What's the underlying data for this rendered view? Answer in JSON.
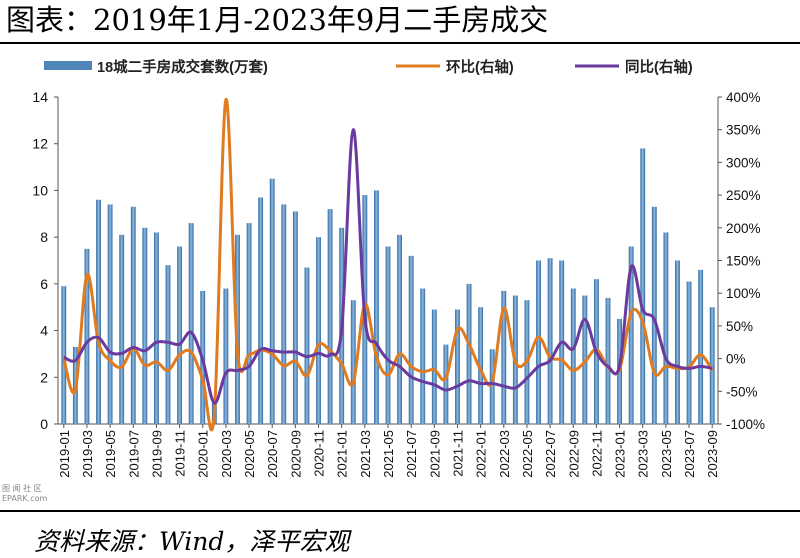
{
  "header": {
    "title": "图表：2019年1月-2023年9月二手房成交"
  },
  "footer": {
    "source": "资料来源：Wind，泽平宏观"
  },
  "watermark": {
    "line1": "图 闻 社 区",
    "line2": "EPARK.com"
  },
  "colors": {
    "bar": "#4f86b8",
    "mom": "#e07b20",
    "yoy": "#6a3a9e"
  },
  "chart_data": {
    "type": "bar+line",
    "legend": [
      "18城二手房成交套数(万套)",
      "环比(右轴)",
      "同比(右轴)"
    ],
    "legend_position": "top",
    "grid": false,
    "y_left": {
      "ylim": [
        0,
        14
      ],
      "ticks": [
        "0",
        "2",
        "4",
        "6",
        "8",
        "10",
        "12",
        "14"
      ]
    },
    "y_right": {
      "ylim": [
        -100,
        400
      ],
      "ticks": [
        "-100%",
        "-50%",
        "0%",
        "50%",
        "100%",
        "150%",
        "200%",
        "250%",
        "300%",
        "350%",
        "400%"
      ]
    },
    "x_tick_labels": [
      "2019-01",
      "2019-03",
      "2019-05",
      "2019-07",
      "2019-09",
      "2019-11",
      "2020-01",
      "2020-03",
      "2020-05",
      "2020-07",
      "2020-09",
      "2020-11",
      "2021-01",
      "2021-03",
      "2021-05",
      "2021-07",
      "2021-09",
      "2021-11",
      "2022-01",
      "2022-03",
      "2022-05",
      "2022-07",
      "2022-09",
      "2022-11",
      "2023-01",
      "2023-03",
      "2023-05",
      "2023-07",
      "2023-09"
    ],
    "categories": [
      "2019-01",
      "2019-02",
      "2019-03",
      "2019-04",
      "2019-05",
      "2019-06",
      "2019-07",
      "2019-08",
      "2019-09",
      "2019-10",
      "2019-11",
      "2019-12",
      "2020-01",
      "2020-02",
      "2020-03",
      "2020-04",
      "2020-05",
      "2020-06",
      "2020-07",
      "2020-08",
      "2020-09",
      "2020-10",
      "2020-11",
      "2020-12",
      "2021-01",
      "2021-02",
      "2021-03",
      "2021-04",
      "2021-05",
      "2021-06",
      "2021-07",
      "2021-08",
      "2021-09",
      "2021-10",
      "2021-11",
      "2021-12",
      "2022-01",
      "2022-02",
      "2022-03",
      "2022-04",
      "2022-05",
      "2022-06",
      "2022-07",
      "2022-08",
      "2022-09",
      "2022-10",
      "2022-11",
      "2022-12",
      "2023-01",
      "2023-02",
      "2023-03",
      "2023-04",
      "2023-05",
      "2023-06",
      "2023-07",
      "2023-08",
      "2023-09"
    ],
    "series": [
      {
        "name": "18城二手房成交套数(万套)",
        "type": "bar",
        "values": [
          5.9,
          3.3,
          7.5,
          9.6,
          9.4,
          8.1,
          9.3,
          8.4,
          8.2,
          6.8,
          7.6,
          8.6,
          5.7,
          0.9,
          5.8,
          8.1,
          8.6,
          9.7,
          10.5,
          9.4,
          9.1,
          6.7,
          8.0,
          9.2,
          8.4,
          5.3,
          9.8,
          10.0,
          7.6,
          8.1,
          7.2,
          5.8,
          4.9,
          3.4,
          4.9,
          6.0,
          5.0,
          3.2,
          5.7,
          5.5,
          5.3,
          7.0,
          7.1,
          7.0,
          5.8,
          5.5,
          6.2,
          5.4,
          4.5,
          7.6,
          11.8,
          9.3,
          8.2,
          7.0,
          6.1,
          6.6,
          5.0
        ]
      },
      {
        "name": "环比(右轴)",
        "type": "line",
        "values": [
          0,
          -48,
          128,
          25,
          -3,
          -13,
          15,
          -10,
          -5,
          -18,
          6,
          10,
          -32,
          -85,
          396,
          10,
          6,
          13,
          7,
          -11,
          -4,
          -26,
          21,
          12,
          -8,
          -37,
          83,
          3,
          -25,
          7,
          -12,
          -20,
          -17,
          -30,
          45,
          22,
          -17,
          -36,
          77,
          -5,
          -4,
          33,
          2,
          -2,
          -18,
          -5,
          14,
          -13,
          -17,
          70,
          56,
          -22,
          -12,
          -15,
          -13,
          6,
          -18
        ]
      },
      {
        "name": "同比(右轴)",
        "type": "line",
        "values": [
          2,
          -3,
          25,
          32,
          10,
          8,
          17,
          12,
          25,
          25,
          22,
          40,
          -2,
          -68,
          -22,
          -18,
          -12,
          14,
          12,
          10,
          10,
          3,
          8,
          6,
          45,
          350,
          63,
          23,
          -2,
          -12,
          -28,
          -35,
          -40,
          -48,
          -42,
          -34,
          -38,
          -38,
          -42,
          -45,
          -30,
          -12,
          -3,
          25,
          15,
          60,
          10,
          -12,
          -11,
          140,
          75,
          60,
          0,
          -12,
          -15,
          -12,
          -15
        ]
      }
    ]
  }
}
